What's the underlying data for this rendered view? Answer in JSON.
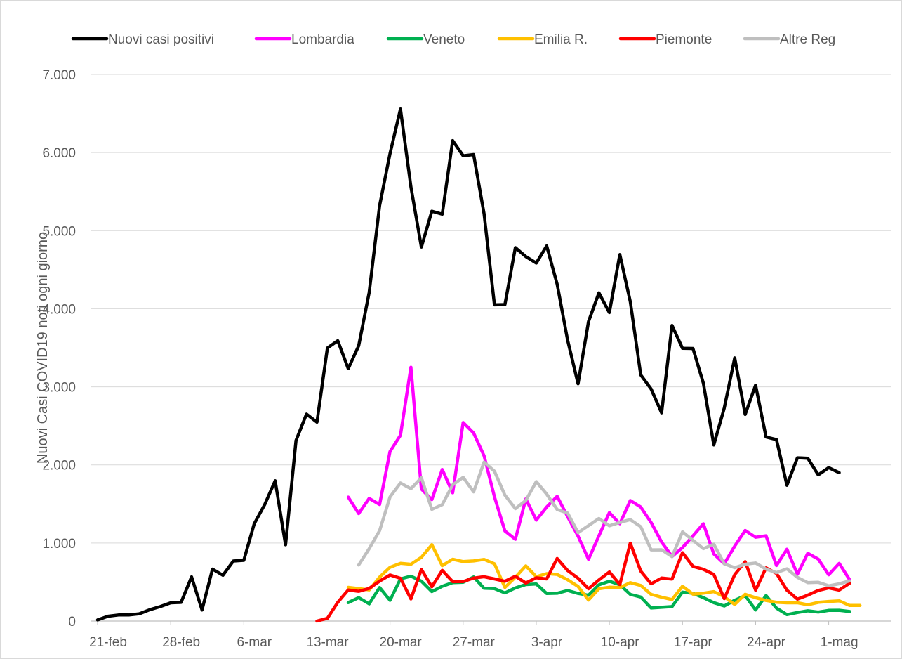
{
  "chart_data": {
    "type": "line",
    "title": "",
    "xlabel": "",
    "ylabel": "Nuovi Casi COVID19 noti ogni giorno",
    "ylim": [
      0,
      7000
    ],
    "y_ticks": [
      "0",
      "1.000",
      "2.000",
      "3.000",
      "4.000",
      "5.000",
      "6.000",
      "7.000"
    ],
    "x_ticks": [
      "21-feb",
      "28-feb",
      "6-mar",
      "13-mar",
      "20-mar",
      "27-mar",
      "3-apr",
      "10-apr",
      "17-apr",
      "24-apr",
      "1-mag"
    ],
    "grid": "horizontal",
    "legend_position": "top",
    "x_start": "21-feb",
    "series": [
      {
        "name": "Nuovi casi positivi",
        "color": "#000000",
        "start_day": 0,
        "values": [
          14,
          62,
          78,
          78,
          94,
          146,
          185,
          234,
          239,
          566,
          142,
          666,
          587,
          769,
          778,
          1247,
          1492,
          1797,
          977,
          2313,
          2651,
          2547,
          3497,
          3590,
          3233,
          3526,
          4207,
          5322,
          5986,
          6557,
          5560,
          4789,
          5249,
          5210,
          6153,
          5959,
          5974,
          5217,
          4050,
          4053,
          4782,
          4668,
          4585,
          4805,
          4316,
          3599,
          3039,
          3836,
          4204,
          3951,
          4694,
          4092,
          3153,
          2972,
          2667,
          3786,
          3493,
          3491,
          3047,
          2256,
          2729,
          3370,
          2646,
          3021,
          2357,
          2324,
          1739,
          2091,
          2086,
          1872,
          1965,
          1900
        ]
      },
      {
        "name": "Lombardia",
        "color": "#ff00ff",
        "start_day": 24,
        "values": [
          1587,
          1377,
          1571,
          1493,
          2171,
          2380,
          3251,
          1691,
          1555,
          1942,
          1643,
          2543,
          2409,
          2117,
          1592,
          1154,
          1047,
          1565,
          1292,
          1460,
          1598,
          1337,
          1089,
          791,
          1091,
          1388,
          1246,
          1544,
          1460,
          1262,
          1012,
          827,
          941,
          1091,
          1246,
          860,
          735,
          960,
          1161,
          1073,
          1092,
          712,
          920,
          599,
          869,
          794,
          593,
          739,
          530
        ]
      },
      {
        "name": "Veneto",
        "color": "#00b050",
        "start_day": 24,
        "values": [
          237,
          300,
          220,
          430,
          265,
          540,
          575,
          512,
          378,
          445,
          492,
          497,
          565,
          420,
          416,
          361,
          425,
          468,
          475,
          354,
          356,
          391,
          354,
          331,
          464,
          510,
          465,
          342,
          308,
          167,
          176,
          185,
          371,
          355,
          300,
          236,
          193,
          266,
          326,
          142,
          327,
          166,
          83,
          110,
          131,
          115,
          137,
          139,
          122
        ]
      },
      {
        "name": "Emilia R.",
        "color": "#ffc000",
        "start_day": 24,
        "values": [
          432,
          417,
          399,
          563,
          688,
          740,
          728,
          816,
          978,
          710,
          792,
          762,
          770,
          790,
          734,
          431,
          561,
          707,
          569,
          607,
          597,
          530,
          444,
          269,
          414,
          434,
          429,
          492,
          456,
          342,
          305,
          275,
          446,
          345,
          357,
          377,
          311,
          212,
          343,
          299,
          264,
          241,
          234,
          235,
          209,
          239,
          251,
          259,
          200,
          200
        ]
      },
      {
        "name": "Piemonte",
        "color": "#ff0000",
        "start_day": 21,
        "values": [
          0,
          35,
          240,
          399,
          381,
          418,
          512,
          590,
          548,
          283,
          661,
          439,
          650,
          505,
          506,
          551,
          568,
          540,
          510,
          574,
          488,
          554,
          540,
          802,
          648,
          549,
          415,
          526,
          629,
          468,
          998,
          641,
          478,
          551,
          537,
          876,
          700,
          663,
          597,
          288,
          595,
          761,
          395,
          682,
          610,
          395,
          281,
          332,
          392,
          425,
          397,
          485
        ]
      },
      {
        "name": "Altre Reg",
        "color": "#bfbfbf",
        "start_day": 25,
        "values": [
          718,
          927,
          1158,
          1589,
          1768,
          1694,
          1836,
          1431,
          1491,
          1744,
          1841,
          1655,
          2036,
          1919,
          1612,
          1440,
          1545,
          1786,
          1626,
          1429,
          1384,
          1132,
          1223,
          1314,
          1220,
          1263,
          1299,
          1208,
          912,
          913,
          825,
          1143,
          1034,
          928,
          984,
          733,
          684,
          728,
          744,
          665,
          621,
          669,
          560,
          492,
          498,
          452,
          478,
          516
        ]
      }
    ]
  }
}
